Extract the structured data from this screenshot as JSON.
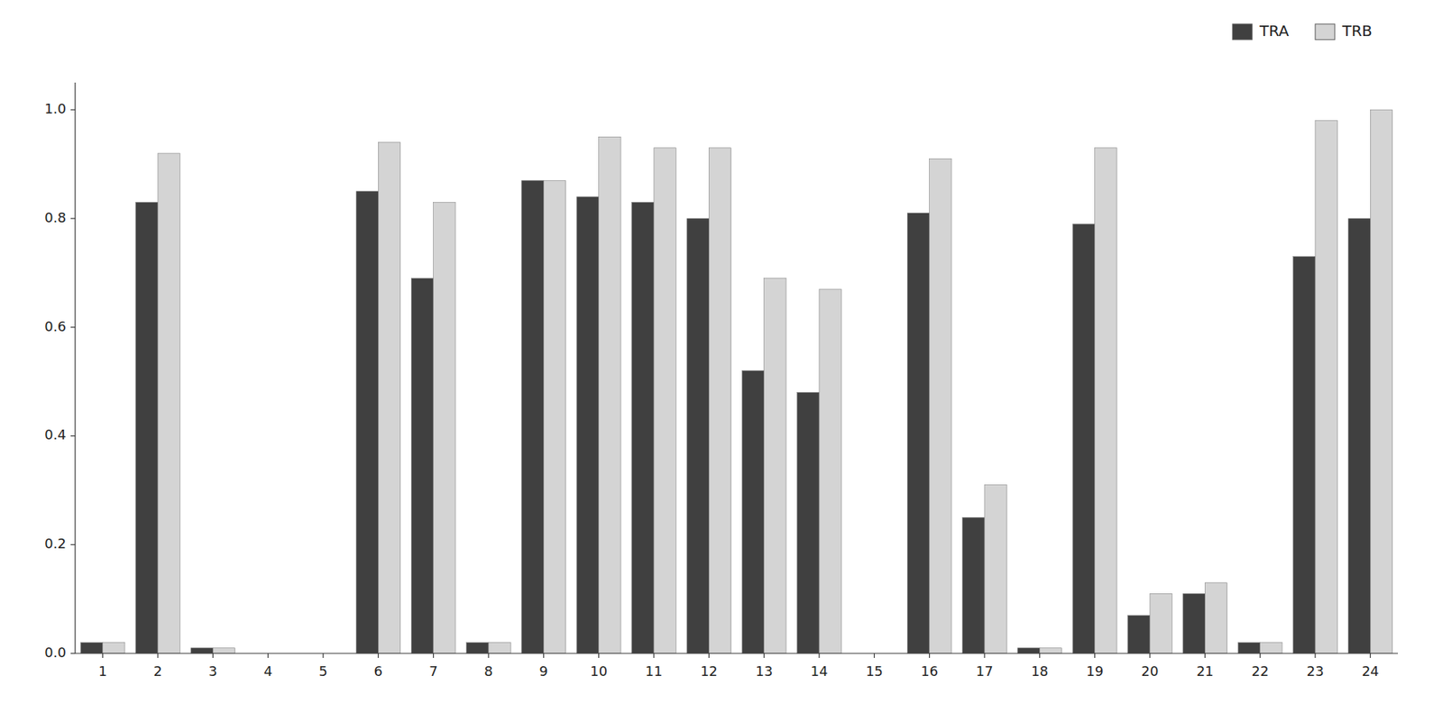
{
  "chart_data": {
    "type": "bar",
    "categories": [
      1,
      2,
      3,
      4,
      5,
      6,
      7,
      8,
      9,
      10,
      11,
      12,
      13,
      14,
      15,
      16,
      17,
      18,
      19,
      20,
      21,
      22,
      23,
      24
    ],
    "series": [
      {
        "name": "TRA",
        "color": "#404040",
        "values": [
          0.02,
          0.83,
          0.01,
          0.0,
          0.0,
          0.85,
          0.69,
          0.02,
          0.87,
          0.84,
          0.83,
          0.8,
          0.52,
          0.48,
          0.0,
          0.81,
          0.25,
          0.01,
          0.79,
          0.07,
          0.11,
          0.02,
          0.73,
          0.8
        ]
      },
      {
        "name": "TRB",
        "color": "#d4d4d4",
        "values": [
          0.02,
          0.92,
          0.01,
          0.0,
          0.0,
          0.94,
          0.83,
          0.02,
          0.87,
          0.95,
          0.93,
          0.93,
          0.69,
          0.67,
          0.0,
          0.91,
          0.31,
          0.01,
          0.93,
          0.11,
          0.13,
          0.02,
          0.98,
          1.0
        ]
      }
    ],
    "ylim": [
      0,
      1.05
    ],
    "yticks": [
      {
        "value": 0.0,
        "label": "0.0"
      },
      0.2,
      0.4,
      0.6,
      0.8,
      {
        "value": 1.0,
        "label": "1.0"
      }
    ],
    "grid": false,
    "legend": "top-right"
  }
}
